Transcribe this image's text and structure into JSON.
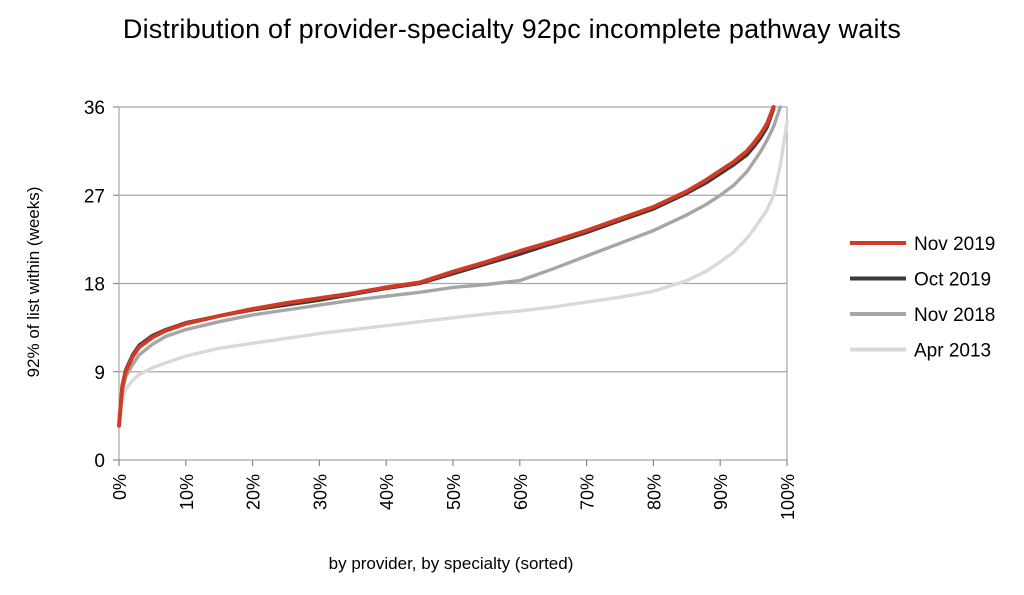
{
  "chart_data": {
    "type": "line",
    "title": "Distribution of provider-specialty 92pc incomplete pathway waits",
    "xlabel": "by provider, by specialty (sorted)",
    "ylabel": "92% of list within (weeks)",
    "xlim": [
      0,
      100
    ],
    "ylim": [
      0,
      36
    ],
    "x_ticks": [
      "0%",
      "10%",
      "20%",
      "30%",
      "40%",
      "50%",
      "60%",
      "70%",
      "80%",
      "90%",
      "100%"
    ],
    "y_ticks": [
      "0",
      "9",
      "18",
      "27",
      "36"
    ],
    "grid": "horizontal",
    "legend_position": "right",
    "x": [
      0,
      0.5,
      1,
      2,
      3,
      5,
      7,
      10,
      15,
      20,
      25,
      30,
      35,
      40,
      45,
      50,
      55,
      60,
      65,
      70,
      75,
      80,
      85,
      88,
      90,
      92,
      94,
      95,
      96,
      97,
      98,
      99,
      100
    ],
    "series": [
      {
        "name": "Nov 2019",
        "color": "#d13b26",
        "values": [
          3.5,
          7.5,
          9,
          10.5,
          11.5,
          12.5,
          13.2,
          13.9,
          14.7,
          15.4,
          16,
          16.5,
          17,
          17.6,
          18.1,
          19.2,
          20.2,
          21.3,
          22.3,
          23.4,
          24.6,
          25.8,
          27.4,
          28.6,
          29.5,
          30.4,
          31.5,
          32.3,
          33.2,
          34.3,
          36,
          null,
          null
        ]
      },
      {
        "name": "Oct 2019",
        "color": "#3a3a3a",
        "values": [
          3.5,
          7.7,
          9.2,
          10.7,
          11.7,
          12.7,
          13.3,
          14,
          14.7,
          15.3,
          15.8,
          16.3,
          16.9,
          17.5,
          18,
          19,
          20,
          21,
          22.1,
          23.2,
          24.4,
          25.6,
          27.2,
          28.3,
          29.2,
          30.1,
          31.1,
          31.9,
          32.8,
          33.9,
          35.8,
          null,
          null
        ]
      },
      {
        "name": "Nov 2018",
        "color": "#a6a6a6",
        "values": [
          3.5,
          7,
          8.5,
          9.7,
          10.7,
          11.8,
          12.6,
          13.3,
          14.1,
          14.8,
          15.3,
          15.8,
          16.3,
          16.7,
          17.1,
          17.6,
          17.9,
          18.3,
          19.5,
          20.8,
          22.1,
          23.4,
          25,
          26.1,
          27,
          28,
          29.4,
          30.4,
          31.4,
          32.6,
          34,
          36,
          null
        ]
      },
      {
        "name": "Apr 2013",
        "color": "#d9d9d9",
        "values": [
          4.5,
          6.2,
          7.2,
          8.1,
          8.7,
          9.4,
          9.9,
          10.6,
          11.4,
          11.9,
          12.4,
          12.9,
          13.3,
          13.7,
          14.1,
          14.5,
          14.9,
          15.2,
          15.6,
          16.1,
          16.6,
          17.2,
          18.3,
          19.3,
          20.2,
          21.2,
          22.6,
          23.5,
          24.5,
          25.5,
          27,
          30,
          34.5
        ]
      }
    ]
  }
}
